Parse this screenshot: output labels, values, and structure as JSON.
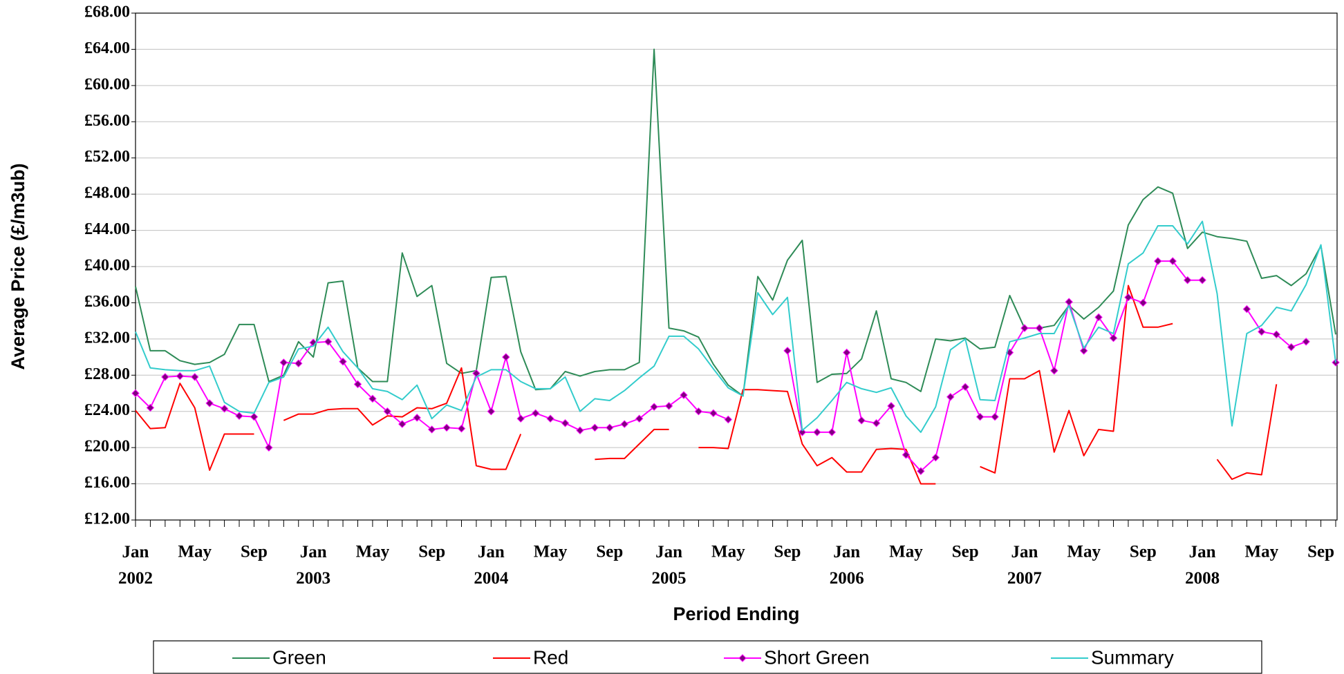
{
  "chart_data": {
    "type": "line",
    "x_label": "Period Ending",
    "y_label": "Average Price (£/m3ub)",
    "categories": [
      "Jan 2002",
      null,
      null,
      null,
      "May",
      null,
      null,
      null,
      "Sep",
      null,
      null,
      null,
      "Jan 2003",
      null,
      null,
      null,
      "May",
      null,
      null,
      null,
      "Sep",
      null,
      null,
      null,
      "Jan 2004",
      null,
      null,
      null,
      "May",
      null,
      null,
      null,
      "Sep",
      null,
      null,
      null,
      "Jan 2005",
      null,
      null,
      null,
      "May",
      null,
      null,
      null,
      "Sep",
      null,
      null,
      null,
      "Jan 2006",
      null,
      null,
      null,
      "May",
      null,
      null,
      null,
      "Sep",
      null,
      null,
      null,
      "Jan 2007",
      null,
      null,
      null,
      "May",
      null,
      null,
      null,
      "Sep",
      null,
      null,
      null,
      "Jan 2008",
      null,
      null,
      null,
      "May",
      null,
      null,
      null,
      "Sep",
      null
    ],
    "ylim": [
      12,
      68
    ],
    "yticks": [
      {
        "value": 12,
        "label": "£12.00"
      },
      {
        "value": 16,
        "label": "£16.00"
      },
      {
        "value": 20,
        "label": "£20.00"
      },
      {
        "value": 24,
        "label": "£24.00"
      },
      {
        "value": 28,
        "label": "£28.00"
      },
      {
        "value": 32,
        "label": "£32.00"
      },
      {
        "value": 36,
        "label": "£36.00"
      },
      {
        "value": 40,
        "label": "£40.00"
      },
      {
        "value": 44,
        "label": "£44.00"
      },
      {
        "value": 48,
        "label": "£48.00"
      },
      {
        "value": 52,
        "label": "£52.00"
      },
      {
        "value": 56,
        "label": "£56.00"
      },
      {
        "value": 60,
        "label": "£60.00"
      },
      {
        "value": 64,
        "label": "£64.00"
      },
      {
        "value": 68,
        "label": "£68.00"
      }
    ],
    "grid": true,
    "legend": "bottom",
    "series": [
      {
        "name": "Green",
        "color": "#2e8b57",
        "values": [
          37.8,
          30.7,
          30.7,
          29.6,
          29.2,
          29.4,
          30.3,
          33.6,
          33.6,
          27.3,
          28.0,
          31.7,
          30.0,
          38.2,
          38.4,
          28.8,
          27.3,
          27.3,
          41.5,
          36.7,
          37.9,
          29.3,
          28.2,
          28.5,
          38.8,
          38.9,
          30.6,
          26.4,
          26.5,
          28.4,
          27.9,
          28.4,
          28.6,
          28.6,
          29.4,
          64.0,
          33.2,
          32.9,
          32.2,
          29.2,
          26.9,
          25.7,
          38.9,
          36.3,
          40.7,
          42.9,
          27.2,
          28.1,
          28.2,
          29.8,
          35.1,
          27.6,
          27.2,
          26.2,
          32.0,
          31.8,
          32.1,
          30.9,
          31.1,
          36.8,
          33.2,
          33.2,
          33.5,
          35.7,
          34.2,
          35.5,
          37.3,
          44.6,
          47.4,
          48.8,
          48.1,
          42.0,
          43.8,
          43.3,
          43.1,
          42.8,
          38.7,
          39.0,
          37.9,
          39.2,
          42.3,
          32.5
        ]
      },
      {
        "name": "Red",
        "color": "#ff0000",
        "values": [
          24.1,
          22.1,
          22.2,
          27.1,
          24.4,
          17.5,
          21.5,
          21.5,
          21.5,
          null,
          23.0,
          23.7,
          23.7,
          24.2,
          24.3,
          24.3,
          22.5,
          23.5,
          23.4,
          24.4,
          24.3,
          24.9,
          28.8,
          18.0,
          17.6,
          17.6,
          21.5,
          null,
          null,
          null,
          null,
          18.7,
          18.8,
          18.8,
          20.4,
          22.0,
          22.0,
          null,
          20.0,
          20.0,
          19.9,
          26.4,
          26.4,
          26.3,
          26.2,
          20.4,
          18.0,
          18.9,
          17.3,
          17.3,
          19.8,
          19.9,
          19.8,
          16.0,
          16.0,
          null,
          null,
          17.9,
          17.2,
          27.6,
          27.6,
          28.5,
          19.5,
          24.1,
          19.1,
          22.0,
          21.8,
          37.9,
          33.3,
          33.3,
          33.7,
          null,
          null,
          18.7,
          16.5,
          17.2,
          17.0,
          27.0,
          null,
          null,
          null,
          null
        ]
      },
      {
        "name": "Short Green",
        "color": "#ff00ff",
        "marker": "diamond",
        "marker_color": "#800080",
        "values": [
          26.0,
          24.4,
          27.8,
          27.9,
          27.8,
          24.9,
          24.3,
          23.5,
          23.4,
          20.0,
          29.4,
          29.3,
          31.6,
          31.7,
          29.5,
          27.0,
          25.4,
          24.0,
          22.6,
          23.3,
          22.0,
          22.2,
          22.1,
          28.2,
          24.0,
          30.0,
          23.2,
          23.8,
          23.2,
          22.7,
          21.9,
          22.2,
          22.2,
          22.6,
          23.2,
          24.5,
          24.6,
          25.8,
          24.0,
          23.8,
          23.1,
          null,
          null,
          null,
          30.7,
          21.7,
          21.7,
          21.7,
          30.5,
          23.0,
          22.7,
          24.6,
          19.2,
          17.4,
          18.9,
          25.6,
          26.7,
          23.4,
          23.4,
          30.5,
          33.2,
          33.2,
          28.5,
          36.1,
          30.7,
          34.4,
          32.1,
          36.6,
          36.0,
          40.6,
          40.6,
          38.5,
          38.5,
          null,
          null,
          35.3,
          32.8,
          32.5,
          31.1,
          31.7,
          null,
          29.4
        ]
      },
      {
        "name": "Summary",
        "color": "#33cccc",
        "values": [
          32.8,
          28.8,
          28.6,
          28.5,
          28.5,
          29.0,
          25.0,
          24.0,
          23.8,
          27.2,
          27.8,
          30.9,
          31.2,
          33.3,
          30.6,
          28.8,
          26.5,
          26.2,
          25.3,
          26.9,
          23.2,
          24.7,
          24.1,
          27.8,
          28.6,
          28.6,
          27.3,
          26.5,
          26.5,
          27.8,
          24.0,
          25.4,
          25.2,
          26.3,
          27.7,
          29.0,
          32.3,
          32.3,
          30.9,
          28.7,
          26.6,
          25.7,
          37.1,
          34.7,
          36.6,
          21.9,
          23.3,
          25.2,
          27.2,
          26.5,
          26.1,
          26.6,
          23.5,
          21.7,
          24.5,
          30.8,
          32.0,
          25.3,
          25.2,
          31.7,
          32.1,
          32.6,
          32.6,
          35.7,
          31.0,
          33.3,
          32.6,
          40.3,
          41.5,
          44.5,
          44.5,
          42.5,
          45.0,
          37.0,
          22.4,
          32.6,
          33.5,
          35.5,
          35.1,
          38.0,
          42.4,
          29.4
        ]
      }
    ]
  }
}
